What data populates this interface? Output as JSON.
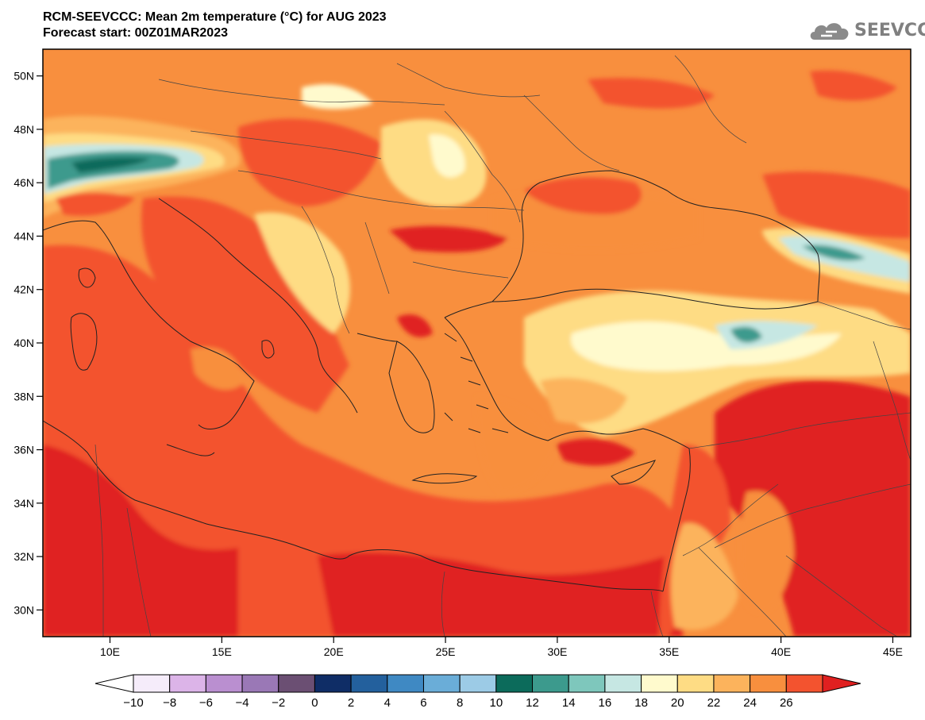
{
  "header": {
    "title_line1": "RCM-SEEVCCC: Mean 2m temperature (°C) for AUG 2023",
    "title_line2": "Forecast start: 00Z01MAR2023"
  },
  "logo": {
    "text": "SEEVCCC",
    "icon": "cloud-icon"
  },
  "map": {
    "lon_range": [
      7,
      45.8
    ],
    "lat_range": [
      29,
      51
    ],
    "lat_ticks": [
      "30N",
      "32N",
      "34N",
      "36N",
      "38N",
      "40N",
      "42N",
      "44N",
      "46N",
      "48N",
      "50N"
    ],
    "lon_ticks": [
      "10E",
      "15E",
      "20E",
      "25E",
      "30E",
      "35E",
      "40E",
      "45E"
    ]
  },
  "colorbar": {
    "tick_labels": [
      "−10",
      "−8",
      "−6",
      "−4",
      "−2",
      "0",
      "2",
      "4",
      "6",
      "8",
      "10",
      "12",
      "14",
      "16",
      "18",
      "20",
      "22",
      "24",
      "26"
    ],
    "colors": [
      "#f5ecfa",
      "#dcb4e8",
      "#ba8fd0",
      "#9a78b6",
      "#6b4f73",
      "#0f2d66",
      "#23609d",
      "#3f89c3",
      "#6aadd8",
      "#9ccbe6",
      "#0c6b5b",
      "#3c9a8d",
      "#7ec7bc",
      "#c6e7e3",
      "#fffacd",
      "#fedc84",
      "#fcb35c",
      "#f88f3e",
      "#f3532f"
    ],
    "low_color": "#ffffff",
    "high_color": "#e02020"
  }
}
